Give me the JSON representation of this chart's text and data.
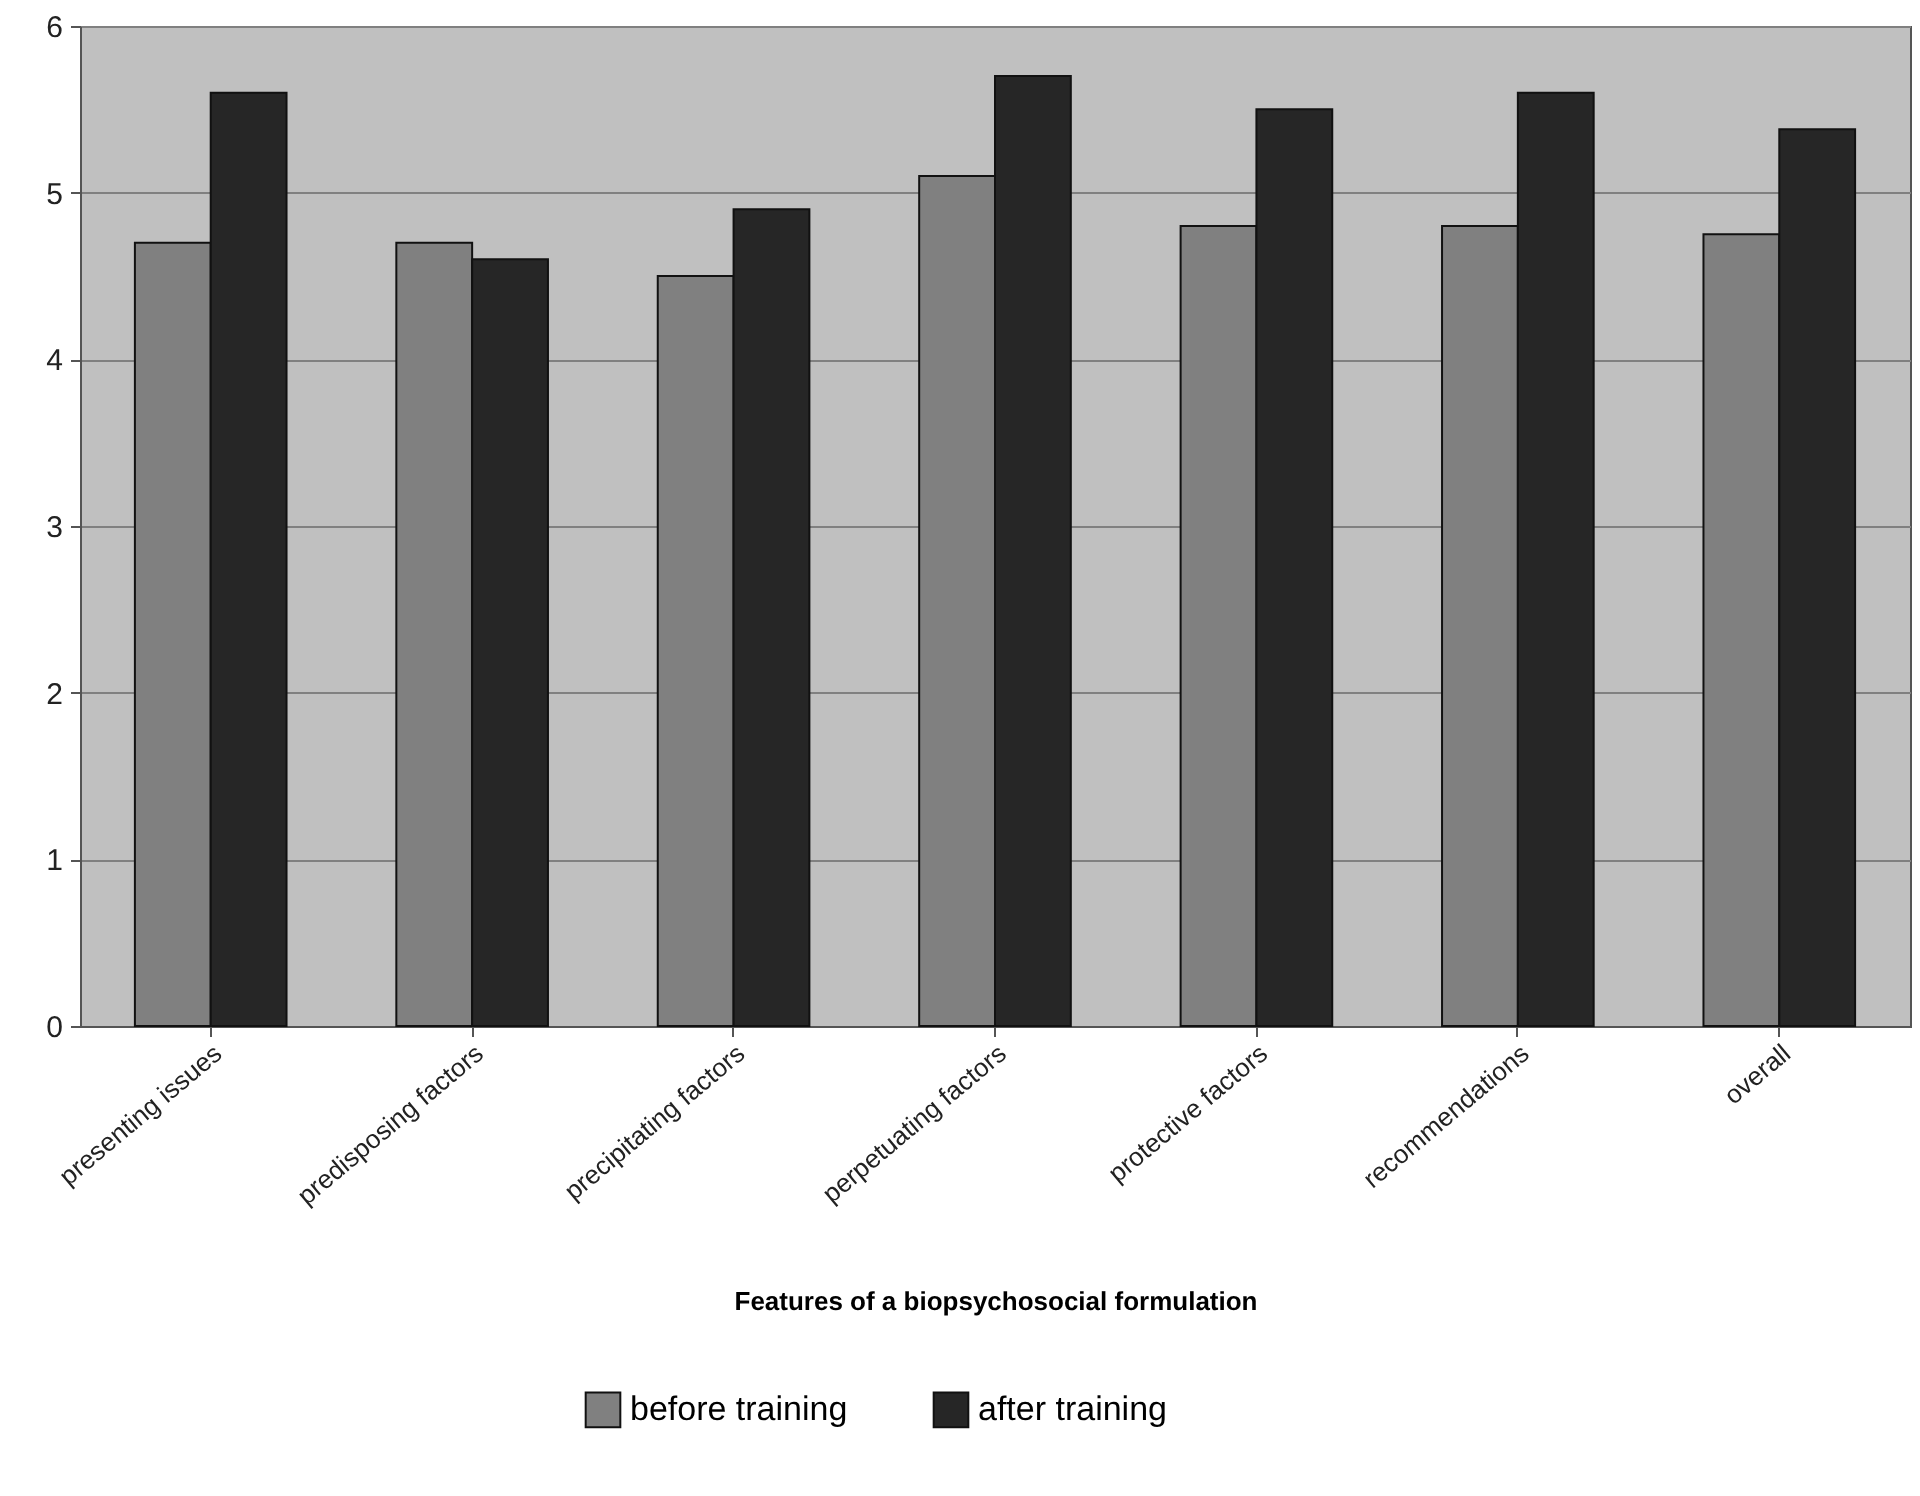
{
  "chart_data": {
    "type": "bar",
    "xlabel": "Features of a biopsychosocial formulation",
    "categories": [
      "presenting issues",
      "predisposing factors",
      "precipitating factors",
      "perpetuating factors",
      "protective factors",
      "recommendations",
      "overall"
    ],
    "series": [
      {
        "name": "before training",
        "color": "#808080",
        "values": [
          4.7,
          4.7,
          4.5,
          5.1,
          4.8,
          4.8,
          4.75
        ]
      },
      {
        "name": "after training",
        "color": "#262626",
        "values": [
          5.6,
          4.6,
          4.9,
          5.7,
          5.5,
          5.6,
          5.38
        ]
      }
    ],
    "ylim": [
      0,
      6
    ],
    "yticks": [
      0,
      1,
      2,
      3,
      4,
      5,
      6
    ],
    "grid": "y",
    "legend": "bottom"
  }
}
